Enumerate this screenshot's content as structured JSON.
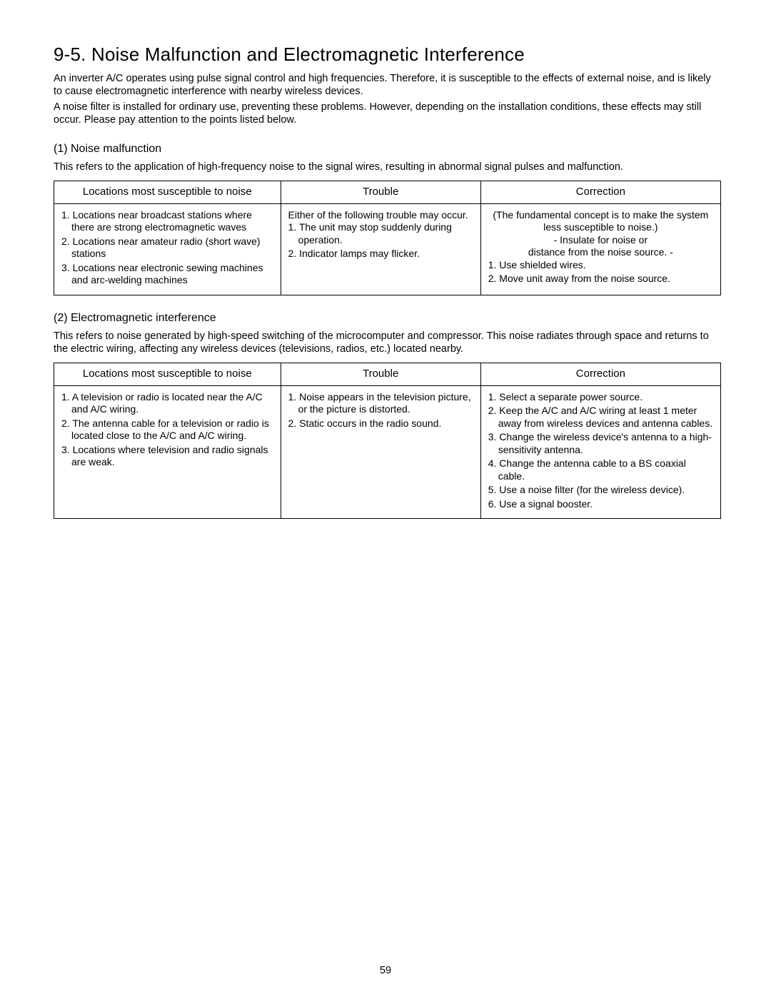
{
  "title": "9-5. Noise Malfunction and Electromagnetic Interference",
  "intro1": "An inverter A/C operates using pulse signal control and high frequencies. Therefore, it is susceptible to the effects of external noise, and is likely to cause electromagnetic interference with nearby wireless devices.",
  "intro2": "A noise filter is installed for ordinary use, preventing these problems. However, depending on the installation conditions, these effects may still occur. Please pay attention to the points listed below.",
  "section1": {
    "heading": "(1) Noise malfunction",
    "text": "This refers to the application of high-frequency noise to the signal wires, resulting in abnormal signal pulses and malfunction.",
    "headers": {
      "c1": "Locations most susceptible to noise",
      "c2": "Trouble",
      "c3": "Correction"
    },
    "locations": {
      "i1": "1. Locations near broadcast stations where there are strong electromagnetic waves",
      "i2": "2. Locations near amateur radio (short wave) stations",
      "i3": "3. Locations near electronic sewing machines and arc-welding machines"
    },
    "trouble": {
      "lead": "Either of the following trouble may occur.",
      "i1": "1. The unit may stop suddenly during operation.",
      "i2": "2. Indicator lamps may flicker."
    },
    "correction": {
      "lead1": "(The fundamental concept is to make the system less susceptible to noise.)",
      "lead2": "- Insulate for noise or",
      "lead3": "distance from the noise source. -",
      "i1": "1. Use shielded wires.",
      "i2": "2. Move unit away from the noise source."
    }
  },
  "section2": {
    "heading": "(2) Electromagnetic interference",
    "text": "This refers to noise generated by high-speed switching of the microcomputer and compressor. This noise radiates through space and returns to the electric wiring, affecting any wireless devices (televisions, radios, etc.) located nearby.",
    "headers": {
      "c1": "Locations most susceptible to noise",
      "c2": "Trouble",
      "c3": "Correction"
    },
    "locations": {
      "i1": "1. A television or radio is located near the A/C and A/C wiring.",
      "i2": "2. The antenna cable for a television or radio is located close to the A/C and A/C wiring.",
      "i3": "3. Locations where television and radio signals are weak."
    },
    "trouble": {
      "i1": "1. Noise appears in the television picture, or the picture is distorted.",
      "i2": "2. Static occurs in the radio sound."
    },
    "correction": {
      "i1": "1. Select a separate power source.",
      "i2": "2. Keep the A/C and A/C wiring at least 1 meter away from wireless devices and antenna cables.",
      "i3": "3. Change the wireless device's antenna to a high-sensitivity antenna.",
      "i4": "4. Change the antenna cable to a BS coaxial cable.",
      "i5": "5. Use a noise filter (for the wireless device).",
      "i6": "6. Use a signal booster."
    }
  },
  "pagenum": "59"
}
